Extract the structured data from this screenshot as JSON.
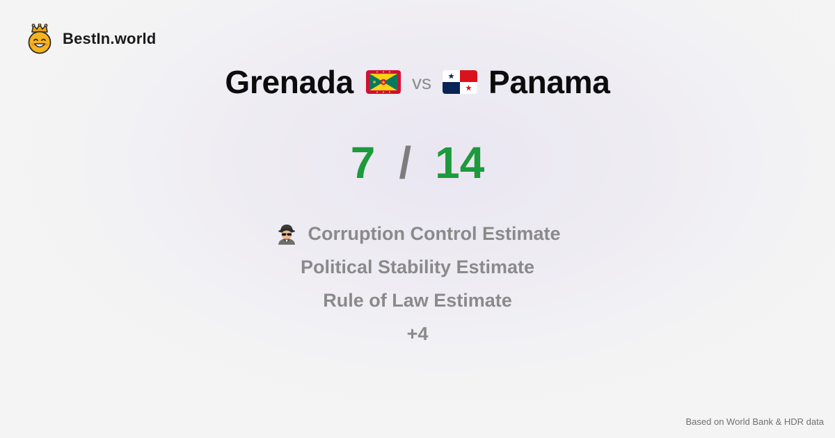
{
  "brand": {
    "name": "BestIn.world",
    "logo_icon": "crowned-smiley-icon"
  },
  "comparison": {
    "left_country": "Grenada",
    "left_flag_icon": "grenada-flag-icon",
    "vs_label": "vs",
    "right_country": "Panama",
    "right_flag_icon": "panama-flag-icon"
  },
  "score": {
    "left": "7",
    "separator": "/",
    "right": "14",
    "color": "#1d9a3c"
  },
  "metrics": [
    {
      "label": "Corruption Control Estimate",
      "icon": "detective-icon"
    },
    {
      "label": "Political Stability Estimate"
    },
    {
      "label": "Rule of Law Estimate"
    },
    {
      "label": "+4"
    }
  ],
  "footer": {
    "note": "Based on World Bank & HDR data"
  }
}
